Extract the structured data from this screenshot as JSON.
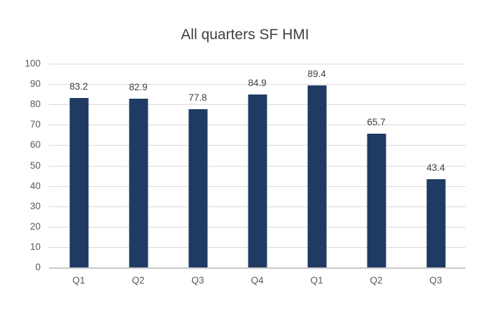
{
  "chart_data": {
    "type": "bar",
    "title": "All quarters SF HMI",
    "categories": [
      "Q1",
      "Q2",
      "Q3",
      "Q4",
      "Q1",
      "Q2",
      "Q3"
    ],
    "values": [
      83.2,
      82.9,
      77.8,
      84.9,
      89.4,
      65.7,
      43.4
    ],
    "data_labels": [
      "83.2",
      "82.9",
      "77.8",
      "84.9",
      "89.4",
      "65.7",
      "43.4"
    ],
    "xlabel": "",
    "ylabel": "",
    "ylim": [
      0,
      100
    ],
    "yticks": [
      0,
      10,
      20,
      30,
      40,
      50,
      60,
      70,
      80,
      90,
      100
    ],
    "grid": true,
    "legend": "none",
    "colors": {
      "bar": "#1f3b63",
      "gridline": "#d9d9d9",
      "axis_line": "#c9c7c7",
      "title_text": "#404040",
      "tick_text": "#595959",
      "data_label_text": "#404040",
      "background": "#ffffff"
    }
  }
}
